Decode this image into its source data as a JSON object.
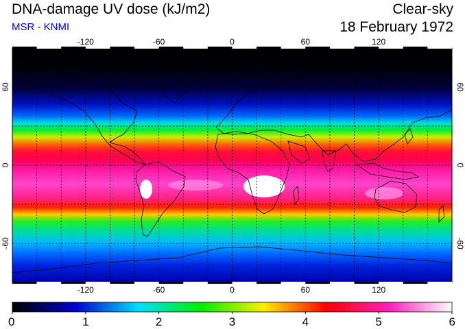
{
  "header": {
    "title": "DNA-damage UV dose (kJ/m2)",
    "subtitle": "MSR - KNMI",
    "subtitle_color": "#0000ee",
    "condition": "Clear-sky",
    "date": "18 February 1972"
  },
  "map": {
    "projection": "equirectangular",
    "lon_range": [
      -180,
      180
    ],
    "lat_range": [
      -90,
      90
    ],
    "lon_ticks": [
      -120,
      -60,
      0,
      60,
      120
    ],
    "lat_ticks": [
      60,
      0,
      -60
    ],
    "lon_tick_labels": [
      "-120",
      "-60",
      "0",
      "60",
      "120"
    ],
    "lat_tick_labels": [
      "60",
      "0",
      "-60"
    ],
    "grid_spacing_deg": 20,
    "grid": true,
    "coastlines": true
  },
  "colorbar": {
    "min": 0,
    "max": 6,
    "tick_labels": [
      "0",
      "1",
      "2",
      "3",
      "4",
      "5",
      "6"
    ],
    "colors": [
      "#000000",
      "#0000cc",
      "#00ddff",
      "#00ee00",
      "#ffee00",
      "#ff0000",
      "#ff22bb",
      "#ffffff"
    ]
  }
}
